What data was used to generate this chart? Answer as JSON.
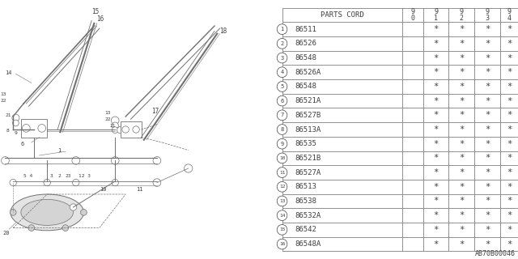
{
  "bg_color": "#ffffff",
  "line_color": "#909090",
  "text_color": "#404040",
  "table_header_text": "PARTS CORD",
  "year_cols": [
    "9\n0",
    "9\n1",
    "9\n2",
    "9\n3",
    "9\n4"
  ],
  "rows": [
    [
      "1",
      "86511",
      false,
      true,
      true,
      true,
      true
    ],
    [
      "2",
      "86526",
      false,
      true,
      true,
      true,
      true
    ],
    [
      "3",
      "86548",
      false,
      true,
      true,
      true,
      true
    ],
    [
      "4",
      "86526A",
      false,
      true,
      true,
      true,
      true
    ],
    [
      "5",
      "86548",
      false,
      true,
      true,
      true,
      true
    ],
    [
      "6",
      "86521A",
      false,
      true,
      true,
      true,
      true
    ],
    [
      "7",
      "86527B",
      false,
      true,
      true,
      true,
      true
    ],
    [
      "8",
      "86513A",
      false,
      true,
      true,
      true,
      true
    ],
    [
      "9",
      "86535",
      false,
      true,
      true,
      true,
      true
    ],
    [
      "10",
      "86521B",
      false,
      true,
      true,
      true,
      true
    ],
    [
      "11",
      "86527A",
      false,
      true,
      true,
      true,
      true
    ],
    [
      "12",
      "86513",
      false,
      true,
      true,
      true,
      true
    ],
    [
      "13",
      "86538",
      false,
      true,
      true,
      true,
      true
    ],
    [
      "14",
      "86532A",
      false,
      true,
      true,
      true,
      true
    ],
    [
      "15",
      "86542",
      false,
      true,
      true,
      true,
      true
    ],
    [
      "16",
      "86548A",
      false,
      true,
      true,
      true,
      true
    ]
  ],
  "diagram_label": "AB70B00046",
  "font_size": 6.5
}
